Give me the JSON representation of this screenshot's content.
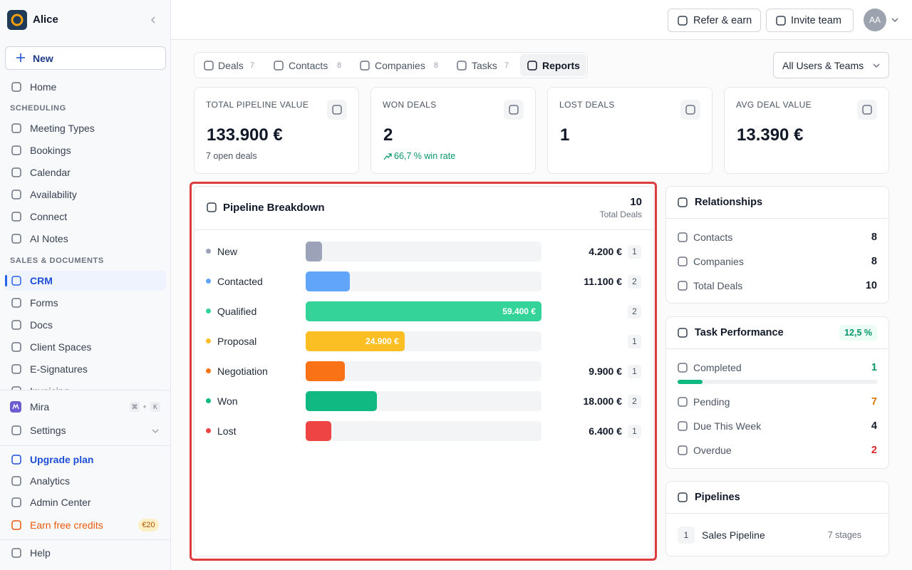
{
  "sidebar": {
    "workspace": "Alice",
    "new_button": "New",
    "home": "Home",
    "sections": [
      {
        "title": "SCHEDULING",
        "items": [
          "Meeting Types",
          "Bookings",
          "Calendar",
          "Availability",
          "Connect",
          "AI Notes"
        ]
      },
      {
        "title": "SALES & DOCUMENTS",
        "items": [
          "CRM",
          "Forms",
          "Docs",
          "Client Spaces",
          "E-Signatures",
          "Invoicing"
        ]
      }
    ],
    "mira": "Mira",
    "shortcut": [
      "⌘",
      "+",
      "K"
    ],
    "settings": "Settings",
    "footer": [
      "Upgrade plan",
      "Analytics",
      "Admin Center",
      "Earn free credits"
    ],
    "credits_badge": "€20",
    "help": "Help"
  },
  "topbar": {
    "refer": "Refer & earn",
    "invite": "Invite team",
    "avatar": "AA"
  },
  "tabs": [
    {
      "label": "Deals",
      "count": 7
    },
    {
      "label": "Contacts",
      "count": 8
    },
    {
      "label": "Companies",
      "count": 8
    },
    {
      "label": "Tasks",
      "count": 7
    },
    {
      "label": "Reports"
    }
  ],
  "filter": "All Users & Teams",
  "stats": [
    {
      "label": "TOTAL PIPELINE VALUE",
      "value": "133.900 €",
      "note": "7 open deals"
    },
    {
      "label": "WON DEALS",
      "value": 2,
      "note": "66,7 % win rate"
    },
    {
      "label": "LOST DEALS",
      "value": 1
    },
    {
      "label": "AVG DEAL VALUE",
      "value": "13.390 €"
    }
  ],
  "pipeline": {
    "title": "Pipeline Breakdown",
    "total": 10,
    "total_label": "Total Deals",
    "stages": [
      {
        "name": "New",
        "value": 4200,
        "value_label": "4.200 €",
        "count": 1,
        "color": "#9ca3b8"
      },
      {
        "name": "Contacted",
        "value": 11100,
        "value_label": "11.100 €",
        "count": 2,
        "color": "#60a5fa"
      },
      {
        "name": "Qualified",
        "value": 59400,
        "value_label": "59.400 €",
        "count": 2,
        "color": "#34d399"
      },
      {
        "name": "Proposal",
        "value": 24900,
        "value_label": "24.900 €",
        "count": 1,
        "color": "#fbbf24"
      },
      {
        "name": "Negotiation",
        "value": 9900,
        "value_label": "9.900 €",
        "count": 1,
        "color": "#f97316"
      },
      {
        "name": "Won",
        "value": 18000,
        "value_label": "18.000 €",
        "count": 2,
        "color": "#10b981"
      },
      {
        "name": "Lost",
        "value": 6400,
        "value_label": "6.400 €",
        "count": 1,
        "color": "#ef4444"
      }
    ]
  },
  "relationships": {
    "title": "Relationships",
    "rows": [
      {
        "label": "Contacts",
        "value": 8
      },
      {
        "label": "Companies",
        "value": 8
      },
      {
        "label": "Total Deals",
        "value": 10
      }
    ]
  },
  "tasks": {
    "title": "Task Performance",
    "badge": "12,5 %",
    "rows": [
      {
        "label": "Completed",
        "value": 1,
        "color": "#059669"
      },
      {
        "label": "Pending",
        "value": 7,
        "color": "#d97706"
      },
      {
        "label": "Due This Week",
        "value": 4,
        "color": "#111827"
      },
      {
        "label": "Overdue",
        "value": 2,
        "color": "#dc2626"
      }
    ]
  },
  "pipelines": {
    "title": "Pipelines",
    "items": [
      {
        "index": 1,
        "name": "Sales Pipeline",
        "stages": "7 stages"
      }
    ]
  }
}
